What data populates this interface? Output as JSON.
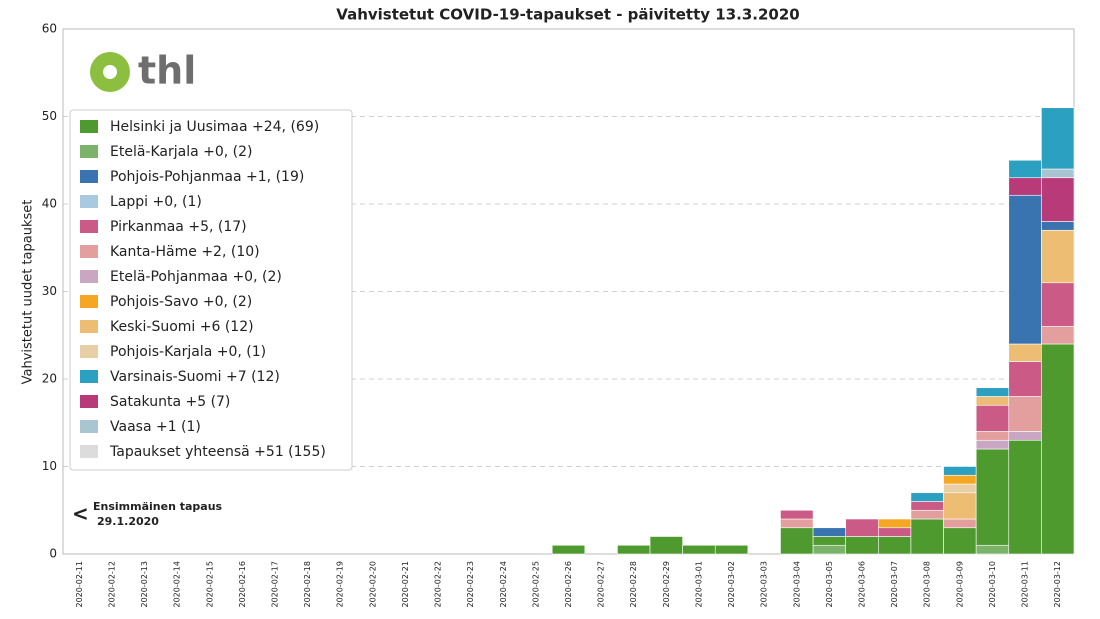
{
  "chart_data": {
    "type": "bar",
    "stacked": true,
    "title": "Vahvistetut COVID-19-tapaukset - päivitetty 13.3.2020",
    "y_label": "Vahvistetut uudet tapaukset",
    "annotation": {
      "arrow": "<",
      "lines": [
        "Ensimmäinen tapaus",
        "29.1.2020"
      ]
    },
    "logo": "thl",
    "categories": [
      "2020-02-11",
      "2020-02-12",
      "2020-02-13",
      "2020-02-14",
      "2020-02-15",
      "2020-02-16",
      "2020-02-17",
      "2020-02-18",
      "2020-02-19",
      "2020-02-20",
      "2020-02-21",
      "2020-02-22",
      "2020-02-23",
      "2020-02-24",
      "2020-02-25",
      "2020-02-26",
      "2020-02-27",
      "2020-02-28",
      "2020-02-29",
      "2020-03-01",
      "2020-03-02",
      "2020-03-03",
      "2020-03-04",
      "2020-03-05",
      "2020-03-06",
      "2020-03-07",
      "2020-03-08",
      "2020-03-09",
      "2020-03-10",
      "2020-03-11",
      "2020-03-12"
    ],
    "series": [
      {
        "name": "Helsinki ja Uusimaa +24, (69)",
        "color": "#4f9a2e",
        "values": [
          0,
          0,
          0,
          0,
          0,
          0,
          0,
          0,
          0,
          0,
          0,
          0,
          0,
          0,
          0,
          1,
          0,
          1,
          2,
          1,
          1,
          0,
          3,
          1,
          2,
          2,
          4,
          3,
          11,
          13,
          24
        ]
      },
      {
        "name": "Etelä-Karjala +0, (2)",
        "color": "#7bb36a",
        "values": [
          0,
          0,
          0,
          0,
          0,
          0,
          0,
          0,
          0,
          0,
          0,
          0,
          0,
          0,
          0,
          0,
          0,
          0,
          0,
          0,
          0,
          0,
          0,
          1,
          0,
          0,
          0,
          0,
          1,
          0,
          0
        ]
      },
      {
        "name": "Pohjois-Pohjanmaa +1, (19)",
        "color": "#3a74b0",
        "values": [
          0,
          0,
          0,
          0,
          0,
          0,
          0,
          0,
          0,
          0,
          0,
          0,
          0,
          0,
          0,
          0,
          0,
          0,
          0,
          0,
          0,
          0,
          0,
          1,
          0,
          0,
          0,
          0,
          0,
          17,
          1
        ]
      },
      {
        "name": "Lappi +0, (1)",
        "color": "#a9c9e0",
        "values": [
          0,
          0,
          0,
          0,
          0,
          0,
          0,
          0,
          0,
          0,
          0,
          0,
          0,
          0,
          0,
          0,
          0,
          0,
          0,
          0,
          0,
          0,
          0,
          0,
          0,
          0,
          0,
          0,
          0,
          0,
          0
        ]
      },
      {
        "name": "Pirkanmaa +5, (17)",
        "color": "#cc5a86",
        "values": [
          0,
          0,
          0,
          0,
          0,
          0,
          0,
          0,
          0,
          0,
          0,
          0,
          0,
          0,
          0,
          0,
          0,
          0,
          0,
          0,
          0,
          0,
          1,
          0,
          2,
          1,
          1,
          0,
          3,
          4,
          5
        ]
      },
      {
        "name": "Kanta-Häme +2, (10)",
        "color": "#e39e9e",
        "values": [
          0,
          0,
          0,
          0,
          0,
          0,
          0,
          0,
          0,
          0,
          0,
          0,
          0,
          0,
          0,
          0,
          0,
          0,
          0,
          0,
          0,
          0,
          1,
          0,
          0,
          0,
          1,
          1,
          1,
          4,
          2
        ]
      },
      {
        "name": "Etelä-Pohjanmaa +0, (2)",
        "color": "#c9a7c3",
        "values": [
          0,
          0,
          0,
          0,
          0,
          0,
          0,
          0,
          0,
          0,
          0,
          0,
          0,
          0,
          0,
          0,
          0,
          0,
          0,
          0,
          0,
          0,
          0,
          0,
          0,
          0,
          0,
          0,
          1,
          1,
          0
        ]
      },
      {
        "name": "Pohjois-Savo +0, (2)",
        "color": "#f5a623",
        "values": [
          0,
          0,
          0,
          0,
          0,
          0,
          0,
          0,
          0,
          0,
          0,
          0,
          0,
          0,
          0,
          0,
          0,
          0,
          0,
          0,
          0,
          0,
          0,
          0,
          0,
          1,
          0,
          1,
          0,
          0,
          0
        ]
      },
      {
        "name": "Keski-Suomi +6 (12)",
        "color": "#edbd73",
        "values": [
          0,
          0,
          0,
          0,
          0,
          0,
          0,
          0,
          0,
          0,
          0,
          0,
          0,
          0,
          0,
          0,
          0,
          0,
          0,
          0,
          0,
          0,
          0,
          0,
          0,
          0,
          0,
          3,
          1,
          2,
          6
        ]
      },
      {
        "name": "Pohjois-Karjala +0, (1)",
        "color": "#e8cfa6",
        "values": [
          0,
          0,
          0,
          0,
          0,
          0,
          0,
          0,
          0,
          0,
          0,
          0,
          0,
          0,
          0,
          0,
          0,
          0,
          0,
          0,
          0,
          0,
          0,
          0,
          0,
          0,
          0,
          1,
          0,
          0,
          0
        ]
      },
      {
        "name": "Varsinais-Suomi +7 (12)",
        "color": "#2ba0c0",
        "values": [
          0,
          0,
          0,
          0,
          0,
          0,
          0,
          0,
          0,
          0,
          0,
          0,
          0,
          0,
          0,
          0,
          0,
          0,
          0,
          0,
          0,
          0,
          0,
          0,
          0,
          0,
          1,
          1,
          1,
          2,
          7
        ]
      },
      {
        "name": "Satakunta +5 (7)",
        "color": "#b83a78",
        "values": [
          0,
          0,
          0,
          0,
          0,
          0,
          0,
          0,
          0,
          0,
          0,
          0,
          0,
          0,
          0,
          0,
          0,
          0,
          0,
          0,
          0,
          0,
          0,
          0,
          0,
          0,
          0,
          0,
          0,
          2,
          5
        ]
      },
      {
        "name": "Vaasa +1 (1)",
        "color": "#a8c5d1",
        "values": [
          0,
          0,
          0,
          0,
          0,
          0,
          0,
          0,
          0,
          0,
          0,
          0,
          0,
          0,
          0,
          0,
          0,
          0,
          0,
          0,
          0,
          0,
          0,
          0,
          0,
          0,
          0,
          0,
          0,
          0,
          1
        ]
      }
    ],
    "legend_total": {
      "name": "Tapaukset yhteensä +51 (155)",
      "color": "#dcdcdc"
    },
    "ylim": [
      0,
      60
    ],
    "yticks": [
      0,
      10,
      20,
      30,
      40,
      50,
      60
    ],
    "grid": true,
    "legend": "upper left"
  }
}
